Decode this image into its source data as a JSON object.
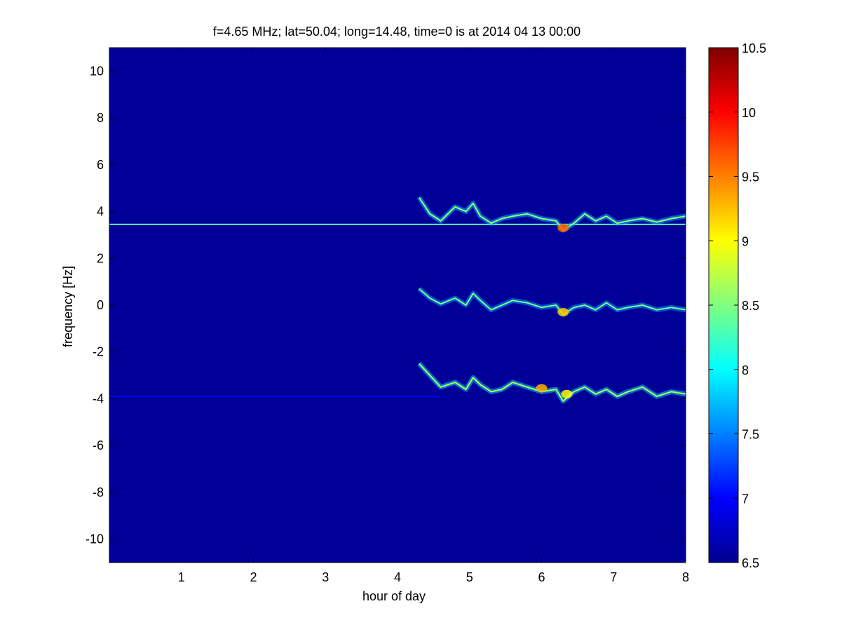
{
  "chart_data": {
    "type": "heatmap",
    "title": "f=4.65 MHz;  lat=50.04; long=14.48, time=0 is at 2014 04 13 00:00",
    "xlabel": "hour of day",
    "ylabel": "frequency [Hz]",
    "xlim": [
      0,
      8
    ],
    "ylim": [
      -11,
      11
    ],
    "xticks": [
      "1",
      "2",
      "3",
      "4",
      "5",
      "6",
      "7",
      "8"
    ],
    "yticks": [
      "10",
      "8",
      "6",
      "4",
      "2",
      "0",
      "-2",
      "-4",
      "-6",
      "-8",
      "-10"
    ],
    "colorbar": {
      "range": [
        6.5,
        10.5
      ],
      "ticks": [
        "10.5",
        "10",
        "9.5",
        "9",
        "8.5",
        "8",
        "7.5",
        "7",
        "6.5"
      ],
      "colormap": "jet",
      "background_value": 6.6
    },
    "features": [
      {
        "kind": "constant_line",
        "freq": 3.45,
        "x_range": [
          0,
          8
        ],
        "value": 8.3
      },
      {
        "kind": "constant_line",
        "freq": -3.9,
        "x_range": [
          0,
          4.6
        ],
        "value": 7.0
      },
      {
        "kind": "trace",
        "points": [
          [
            4.3,
            4.6
          ],
          [
            4.45,
            3.9
          ],
          [
            4.6,
            3.6
          ],
          [
            4.8,
            4.2
          ],
          [
            4.95,
            4.0
          ],
          [
            5.05,
            4.35
          ],
          [
            5.15,
            3.8
          ],
          [
            5.3,
            3.5
          ],
          [
            5.45,
            3.7
          ],
          [
            5.6,
            3.8
          ],
          [
            5.8,
            3.9
          ],
          [
            6.0,
            3.7
          ],
          [
            6.2,
            3.6
          ],
          [
            6.3,
            3.2
          ],
          [
            6.45,
            3.5
          ],
          [
            6.6,
            3.9
          ],
          [
            6.75,
            3.6
          ],
          [
            6.9,
            3.8
          ],
          [
            7.05,
            3.5
          ],
          [
            7.2,
            3.6
          ],
          [
            7.4,
            3.7
          ],
          [
            7.6,
            3.55
          ],
          [
            7.8,
            3.7
          ],
          [
            8.0,
            3.8
          ]
        ],
        "value": 8.6
      },
      {
        "kind": "trace",
        "points": [
          [
            4.3,
            0.7
          ],
          [
            4.45,
            0.3
          ],
          [
            4.6,
            0.05
          ],
          [
            4.8,
            0.3
          ],
          [
            4.95,
            0.0
          ],
          [
            5.05,
            0.5
          ],
          [
            5.15,
            0.2
          ],
          [
            5.3,
            -0.2
          ],
          [
            5.45,
            0.0
          ],
          [
            5.6,
            0.2
          ],
          [
            5.8,
            0.1
          ],
          [
            6.0,
            -0.1
          ],
          [
            6.2,
            0.0
          ],
          [
            6.3,
            -0.4
          ],
          [
            6.45,
            -0.1
          ],
          [
            6.6,
            0.0
          ],
          [
            6.75,
            -0.2
          ],
          [
            6.9,
            0.1
          ],
          [
            7.05,
            -0.2
          ],
          [
            7.2,
            -0.1
          ],
          [
            7.4,
            0.0
          ],
          [
            7.6,
            -0.2
          ],
          [
            7.8,
            -0.1
          ],
          [
            8.0,
            -0.2
          ]
        ],
        "value": 8.5
      },
      {
        "kind": "trace",
        "points": [
          [
            4.3,
            -2.5
          ],
          [
            4.45,
            -3.0
          ],
          [
            4.6,
            -3.5
          ],
          [
            4.8,
            -3.3
          ],
          [
            4.95,
            -3.6
          ],
          [
            5.05,
            -3.1
          ],
          [
            5.15,
            -3.4
          ],
          [
            5.3,
            -3.7
          ],
          [
            5.45,
            -3.6
          ],
          [
            5.6,
            -3.3
          ],
          [
            5.8,
            -3.5
          ],
          [
            6.0,
            -3.7
          ],
          [
            6.2,
            -3.6
          ],
          [
            6.3,
            -4.1
          ],
          [
            6.45,
            -3.7
          ],
          [
            6.6,
            -3.5
          ],
          [
            6.75,
            -3.8
          ],
          [
            6.9,
            -3.6
          ],
          [
            7.05,
            -3.9
          ],
          [
            7.2,
            -3.7
          ],
          [
            7.4,
            -3.5
          ],
          [
            7.6,
            -3.9
          ],
          [
            7.8,
            -3.7
          ],
          [
            8.0,
            -3.8
          ]
        ],
        "value": 8.7
      },
      {
        "kind": "hotspot",
        "x": 6.3,
        "freq": 3.3,
        "value": 9.6
      },
      {
        "kind": "hotspot",
        "x": 6.3,
        "freq": -0.3,
        "value": 9.2
      },
      {
        "kind": "hotspot",
        "x": 6.0,
        "freq": -3.55,
        "value": 9.3
      },
      {
        "kind": "hotspot",
        "x": 6.35,
        "freq": -3.8,
        "value": 9.0
      }
    ]
  }
}
